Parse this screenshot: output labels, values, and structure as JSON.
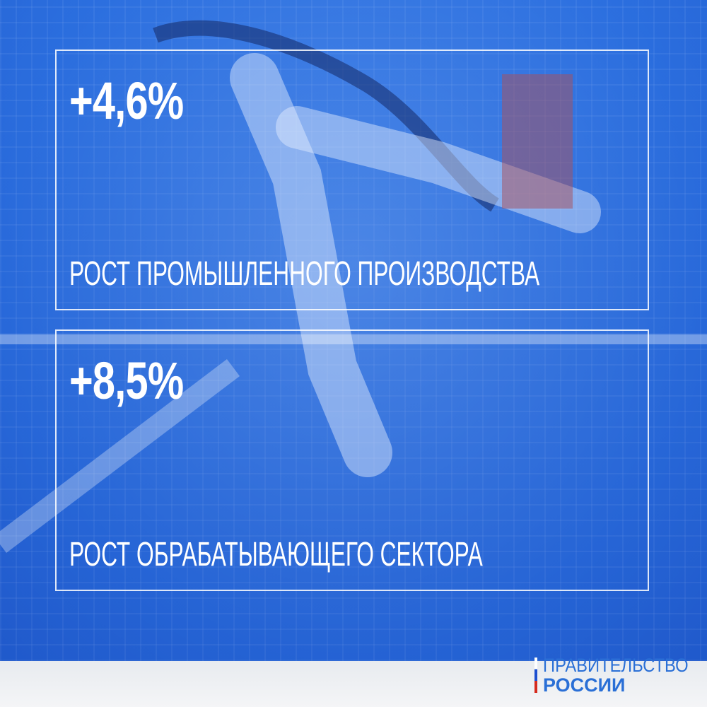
{
  "colors": {
    "overlay": "#2f6fd6",
    "text": "#ffffff",
    "logo": "#2a6fd6"
  },
  "stats": [
    {
      "value": "+4,6%",
      "label": "РОСТ ПРОМЫШЛЕННОГО ПРОИЗВОДСТВА"
    },
    {
      "value": "+8,5%",
      "label": "РОСТ ОБРАБАТЫВАЮЩЕГО СЕКТОРА"
    }
  ],
  "logo": {
    "line1": "ПРАВИТЕЛЬСТВО",
    "line2": "РОССИИ"
  }
}
